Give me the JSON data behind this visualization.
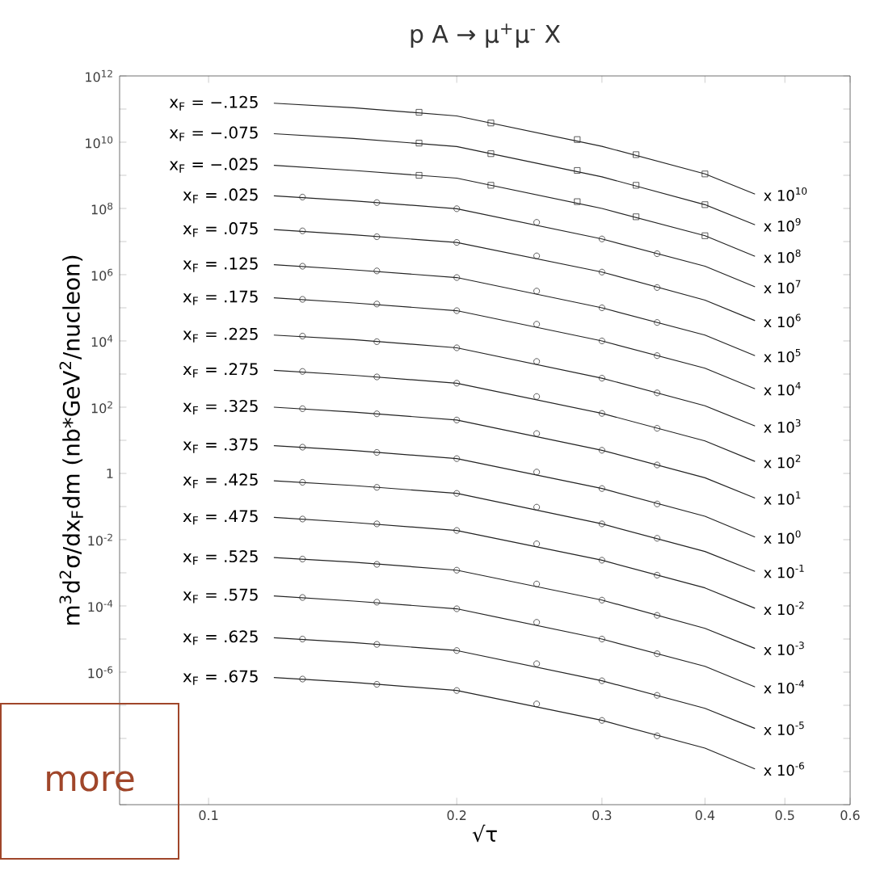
{
  "chart_data": {
    "type": "line",
    "title": "p A → μ$^{+}$μ$^{-}$ X",
    "xlabel": "√τ",
    "ylabel": "m$^{3}$d$^{2}$σ/dx$_{F}$dm (nb*GeV$^{2}$/nucleon)",
    "log": "xy",
    "grid": false,
    "xlim": [
      0.078,
      0.6
    ],
    "xticks": [
      0.1,
      0.2,
      0.3,
      0.4,
      0.5,
      0.6
    ],
    "ylim": [
      1e-10,
      1000000000000.0
    ],
    "yticks": [
      {
        "value": 1000000000000.0,
        "label": "10$^{12}$"
      },
      {
        "value": 100000000000.0,
        "label": null
      },
      {
        "value": 10000000000.0,
        "label": "10$^{10}$"
      },
      {
        "value": 1000000000.0,
        "label": null
      },
      {
        "value": 100000000.0,
        "label": "10$^{8}$"
      },
      {
        "value": 10000000.0,
        "label": null
      },
      {
        "value": 1000000.0,
        "label": "10$^{6}$"
      },
      {
        "value": 100000.0,
        "label": null
      },
      {
        "value": 10000.0,
        "label": "10$^{4}$"
      },
      {
        "value": 1000.0,
        "label": null
      },
      {
        "value": 100,
        "label": "10$^{2}$"
      },
      {
        "value": 10,
        "label": null
      },
      {
        "value": 1,
        "label": "1"
      },
      {
        "value": 0.1,
        "label": null
      },
      {
        "value": 0.01,
        "label": "10$^{-2}$"
      },
      {
        "value": 0.001,
        "label": null
      },
      {
        "value": 0.0001,
        "label": "10$^{-4}$"
      },
      {
        "value": 1e-05,
        "label": null
      },
      {
        "value": 1e-06,
        "label": "10$^{-6}$"
      },
      {
        "value": 1e-07,
        "label": null
      },
      {
        "value": 1e-08,
        "label": null
      },
      {
        "value": 1e-09,
        "label": null
      },
      {
        "value": 1e-10,
        "label": null
      }
    ],
    "series": [
      {
        "name": "x$_{F}$ = −.125",
        "color": "#222222",
        "line_style": "solid",
        "x": [
          0.12,
          0.15,
          0.2,
          0.3,
          0.4,
          0.46
        ],
        "values": [
          150000000000.0,
          110000000000.0,
          62000000000.0,
          7500000000.0,
          1100000000.0,
          270000000.0
        ]
      },
      {
        "type": "scatter",
        "marker": "square",
        "color": "#333333",
        "x": [
          0.18,
          0.22,
          0.28,
          0.33,
          0.4
        ],
        "values": [
          80000000000.0,
          38000000000.0,
          12000000000.0,
          4200000000.0,
          1100000000.0
        ]
      },
      {
        "name": "x$_{F}$ = −.075",
        "color": "#222222",
        "line_style": "solid",
        "x": [
          0.12,
          0.15,
          0.2,
          0.3,
          0.4,
          0.46
        ],
        "values": [
          18000000000.0,
          13000000000.0,
          7400000000.0,
          900000000.0,
          130000000.0,
          32000000.0
        ]
      },
      {
        "type": "scatter",
        "marker": "square",
        "color": "#333333",
        "x": [
          0.18,
          0.22,
          0.28,
          0.33,
          0.4
        ],
        "values": [
          9400000000.0,
          4500000000.0,
          1400000000.0,
          500000000.0,
          130000000.0
        ]
      },
      {
        "name": "x$_{F}$ = −.025",
        "color": "#222222",
        "line_style": "solid",
        "x": [
          0.12,
          0.15,
          0.2,
          0.3,
          0.4,
          0.46
        ],
        "values": [
          2000000000.0,
          1400000000.0,
          820000000.0,
          100000000.0,
          15000000.0,
          3600000.0
        ]
      },
      {
        "type": "scatter",
        "marker": "square",
        "color": "#333333",
        "x": [
          0.18,
          0.22,
          0.28,
          0.33,
          0.4
        ],
        "values": [
          1000000000.0,
          500000000.0,
          160000000.0,
          56000000.0,
          15000000.0
        ]
      },
      {
        "name": "x$_{F}$ = .025",
        "color": "#222222",
        "line_style": "solid",
        "x": [
          0.12,
          0.15,
          0.2,
          0.3,
          0.4,
          0.46
        ],
        "values": [
          240000000.0,
          170000000.0,
          98000000.0,
          12000000.0,
          1800000.0,
          430000.0
        ]
      },
      {
        "type": "scatter",
        "marker": "circle",
        "color": "#333333",
        "x": [
          0.13,
          0.16,
          0.2,
          0.25,
          0.3,
          0.35
        ],
        "values": [
          220000000.0,
          150000000.0,
          98000000.0,
          38000000.0,
          12000000.0,
          4300000.0
        ]
      },
      {
        "name": "x$_{F}$ = .075",
        "color": "#222222",
        "line_style": "solid",
        "x": [
          0.12,
          0.15,
          0.2,
          0.3,
          0.4,
          0.46
        ],
        "values": [
          23000000.0,
          16000000.0,
          9400000.0,
          1200000.0,
          170000.0,
          41000.0
        ]
      },
      {
        "type": "scatter",
        "marker": "circle",
        "color": "#333333",
        "x": [
          0.13,
          0.16,
          0.2,
          0.25,
          0.3,
          0.35
        ],
        "values": [
          21000000.0,
          14000000.0,
          9400000.0,
          3700000.0,
          1200000.0,
          410000.0
        ]
      },
      {
        "name": "x$_{F}$ = .125",
        "color": "#222222",
        "line_style": "solid",
        "x": [
          0.12,
          0.15,
          0.2,
          0.3,
          0.4,
          0.46
        ],
        "values": [
          2000000.0,
          1400000.0,
          820000.0,
          100000.0,
          15000.0,
          3600.0
        ]
      },
      {
        "type": "scatter",
        "marker": "circle",
        "color": "#333333",
        "x": [
          0.13,
          0.16,
          0.2,
          0.25,
          0.3,
          0.35
        ],
        "values": [
          1800000.0,
          1300000.0,
          820000.0,
          320000.0,
          100000.0,
          36000.0
        ]
      },
      {
        "name": "x$_{F}$ = .175",
        "color": "#222222",
        "line_style": "solid",
        "x": [
          0.12,
          0.15,
          0.2,
          0.3,
          0.4,
          0.46
        ],
        "values": [
          200000.0,
          140000.0,
          82000.0,
          10000.0,
          1500.0,
          360
        ]
      },
      {
        "type": "scatter",
        "marker": "circle",
        "color": "#333333",
        "x": [
          0.13,
          0.16,
          0.2,
          0.25,
          0.3,
          0.35
        ],
        "values": [
          180000.0,
          130000.0,
          82000.0,
          32000.0,
          10000.0,
          3600.0
        ]
      },
      {
        "name": "x$_{F}$ = .225",
        "color": "#222222",
        "line_style": "solid",
        "x": [
          0.12,
          0.15,
          0.2,
          0.3,
          0.4,
          0.46
        ],
        "values": [
          15000.0,
          11000.0,
          6200.0,
          750,
          110,
          27
        ]
      },
      {
        "type": "scatter",
        "marker": "circle",
        "color": "#333333",
        "x": [
          0.13,
          0.16,
          0.2,
          0.25,
          0.3,
          0.35
        ],
        "values": [
          14000.0,
          9500.0,
          6200.0,
          2400.0,
          750,
          270
        ]
      },
      {
        "name": "x$_{F}$ = .275",
        "color": "#222222",
        "line_style": "solid",
        "x": [
          0.12,
          0.15,
          0.2,
          0.3,
          0.4,
          0.46
        ],
        "values": [
          1300,
          920,
          530,
          65,
          9.6,
          2.3
        ]
      },
      {
        "type": "scatter",
        "marker": "circle",
        "color": "#333333",
        "x": [
          0.13,
          0.16,
          0.2,
          0.25,
          0.3,
          0.35
        ],
        "values": [
          1200,
          820,
          530,
          210,
          65,
          23
        ]
      },
      {
        "name": "x$_{F}$ = .325",
        "color": "#222222",
        "line_style": "solid",
        "x": [
          0.12,
          0.15,
          0.2,
          0.3,
          0.4,
          0.46
        ],
        "values": [
          100,
          71,
          41,
          5,
          0.74,
          0.18
        ]
      },
      {
        "type": "scatter",
        "marker": "circle",
        "color": "#333333",
        "x": [
          0.13,
          0.16,
          0.2,
          0.25,
          0.3,
          0.35
        ],
        "values": [
          90,
          63,
          41,
          16,
          5,
          1.8
        ]
      },
      {
        "name": "x$_{F}$ = .375",
        "color": "#222222",
        "line_style": "solid",
        "x": [
          0.12,
          0.15,
          0.2,
          0.3,
          0.4,
          0.46
        ],
        "values": [
          6.9,
          4.9,
          2.8,
          0.35,
          0.051,
          0.012
        ]
      },
      {
        "type": "scatter",
        "marker": "circle",
        "color": "#333333",
        "x": [
          0.13,
          0.16,
          0.2,
          0.25,
          0.3,
          0.35
        ],
        "values": [
          6.2,
          4.3,
          2.8,
          1.1,
          0.35,
          0.12
        ]
      },
      {
        "name": "x$_{F}$ = .425",
        "color": "#222222",
        "line_style": "solid",
        "x": [
          0.12,
          0.15,
          0.2,
          0.3,
          0.4,
          0.46
        ],
        "values": [
          0.6,
          0.43,
          0.25,
          0.03,
          0.0044,
          0.0011
        ]
      },
      {
        "type": "scatter",
        "marker": "circle",
        "color": "#333333",
        "x": [
          0.13,
          0.16,
          0.2,
          0.25,
          0.3,
          0.35
        ],
        "values": [
          0.54,
          0.38,
          0.25,
          0.096,
          0.03,
          0.011
        ]
      },
      {
        "name": "x$_{F}$ = .475",
        "color": "#222222",
        "line_style": "solid",
        "x": [
          0.12,
          0.15,
          0.2,
          0.3,
          0.4,
          0.46
        ],
        "values": [
          0.047,
          0.033,
          0.019,
          0.0024,
          0.00035,
          8.5e-05
        ]
      },
      {
        "type": "scatter",
        "marker": "circle",
        "color": "#333333",
        "x": [
          0.13,
          0.16,
          0.2,
          0.25,
          0.3,
          0.35
        ],
        "values": [
          0.042,
          0.03,
          0.019,
          0.0075,
          0.0024,
          0.00085
        ]
      },
      {
        "name": "x$_{F}$ = .525",
        "color": "#222222",
        "line_style": "solid",
        "x": [
          0.12,
          0.15,
          0.2,
          0.3,
          0.4,
          0.46
        ],
        "values": [
          0.0029,
          0.0021,
          0.0012,
          0.00015,
          2.1e-05,
          5.2e-06
        ]
      },
      {
        "type": "scatter",
        "marker": "circle",
        "color": "#333333",
        "x": [
          0.13,
          0.16,
          0.2,
          0.25,
          0.3,
          0.35
        ],
        "values": [
          0.0026,
          0.0018,
          0.0012,
          0.00046,
          0.00015,
          5.2e-05
        ]
      },
      {
        "name": "x$_{F}$ = .575",
        "color": "#222222",
        "line_style": "solid",
        "x": [
          0.12,
          0.15,
          0.2,
          0.3,
          0.4,
          0.46
        ],
        "values": [
          0.0002,
          0.00014,
          8.2e-05,
          1e-05,
          1.5e-06,
          3.6e-07
        ]
      },
      {
        "type": "scatter",
        "marker": "circle",
        "color": "#333333",
        "x": [
          0.13,
          0.16,
          0.2,
          0.25,
          0.3,
          0.35
        ],
        "values": [
          0.00018,
          0.00013,
          8.2e-05,
          3.2e-05,
          1e-05,
          3.6e-06
        ]
      },
      {
        "name": "x$_{F}$ = .625",
        "color": "#222222",
        "line_style": "solid",
        "x": [
          0.12,
          0.15,
          0.2,
          0.3,
          0.4,
          0.46
        ],
        "values": [
          1.1e-05,
          7.8e-06,
          4.5e-06,
          5.5e-07,
          8.1e-08,
          2e-08
        ]
      },
      {
        "type": "scatter",
        "marker": "circle",
        "color": "#333333",
        "x": [
          0.13,
          0.16,
          0.2,
          0.25,
          0.3,
          0.35
        ],
        "values": [
          1e-05,
          6.9e-06,
          4.5e-06,
          1.8e-06,
          5.5e-07,
          2e-07
        ]
      },
      {
        "name": "x$_{F}$ = .675",
        "color": "#222222",
        "line_style": "solid",
        "x": [
          0.12,
          0.15,
          0.2,
          0.3,
          0.4,
          0.46
        ],
        "values": [
          6.9e-07,
          4.9e-07,
          2.8e-07,
          3.5e-08,
          5.1e-09,
          1.2e-09
        ]
      },
      {
        "type": "scatter",
        "marker": "circle",
        "color": "#333333",
        "x": [
          0.13,
          0.16,
          0.2,
          0.25,
          0.3,
          0.35
        ],
        "values": [
          6.2e-07,
          4.3e-07,
          2.8e-07,
          1.1e-07,
          3.5e-08,
          1.2e-08
        ]
      }
    ],
    "annotations": [
      "x 10$^{10}$",
      "x 10$^{9}$",
      "x 10$^{8}$",
      "x 10$^{7}$",
      "x 10$^{6}$",
      "x 10$^{5}$",
      "x 10$^{4}$",
      "x 10$^{3}$",
      "x 10$^{2}$",
      "x 10$^{1}$",
      "x 10$^{0}$",
      "x 10$^{-1}$",
      "x 10$^{-2}$",
      "x 10$^{-3}$",
      "x 10$^{-4}$",
      "x 10$^{-5}$",
      "x 10$^{-6}$",
      "more"
    ]
  }
}
